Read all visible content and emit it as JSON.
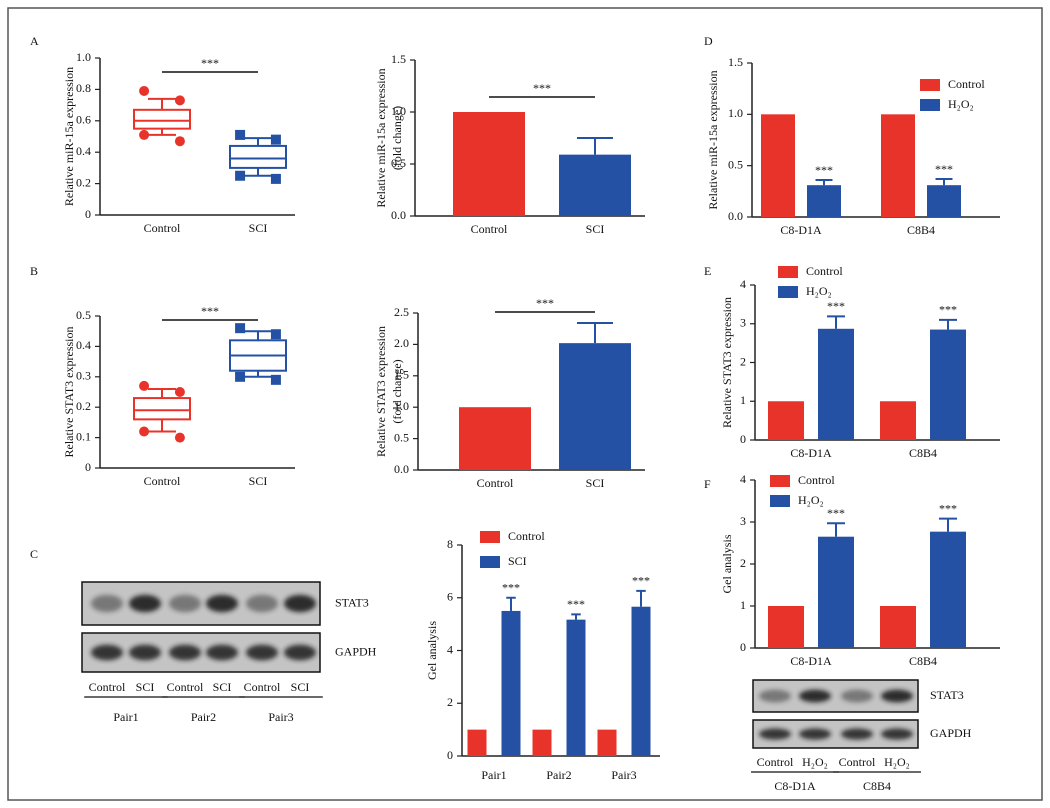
{
  "panels": [
    "A",
    "B",
    "C",
    "D",
    "E",
    "F"
  ],
  "chart_data": [
    {
      "type": "box",
      "ylabel": [
        "Relative miR-15a expression"
      ],
      "categories": [
        "Control",
        "SCI"
      ],
      "colors": [
        "#e8332a",
        "#2451a4"
      ],
      "markers": [
        "circle",
        "square"
      ],
      "boxes": [
        {
          "min": 0.51,
          "q1": 0.55,
          "median": 0.6,
          "q3": 0.67,
          "max": 0.74,
          "points": [
            0.79,
            0.73,
            0.51,
            0.47
          ]
        },
        {
          "min": 0.25,
          "q1": 0.3,
          "median": 0.36,
          "q3": 0.44,
          "max": 0.49,
          "points": [
            0.51,
            0.48,
            0.25,
            0.23
          ]
        }
      ],
      "ylim": [
        0,
        1
      ],
      "yticks": [
        0,
        0.2,
        0.4,
        0.6,
        0.8,
        {
          "value": 1,
          "label": "1.0"
        }
      ],
      "significance": "***"
    },
    {
      "type": "bar",
      "ylabel": [
        "Relative miR-15a expression",
        "(fold change)"
      ],
      "categories": [
        "Control",
        "SCI"
      ],
      "colors": [
        "#e8332a",
        "#2451a4"
      ],
      "values": [
        1,
        0.59
      ],
      "errors": [
        null,
        0.16
      ],
      "ylim": [
        0,
        1.5
      ],
      "yticks": [
        {
          "value": 0,
          "label": "0.0"
        },
        0.5,
        {
          "value": 1,
          "label": "1.0"
        },
        1.5
      ],
      "significance": "***"
    },
    {
      "type": "bar",
      "ylabel": [
        "Relative miR-15a expression"
      ],
      "categories": [
        "C8-D1A",
        "C8B4"
      ],
      "legend": "upper right",
      "series": [
        {
          "name": "Control",
          "color": "#e8332a",
          "values": [
            1,
            1
          ]
        },
        {
          "name": "H₂O₂",
          "color": "#2451a4",
          "values": [
            0.31,
            0.31
          ],
          "errors": [
            0.05,
            0.06
          ],
          "significance": [
            "***",
            "***"
          ]
        }
      ],
      "ylim": [
        0,
        1.5
      ],
      "yticks": [
        {
          "value": 0,
          "label": "0.0"
        },
        0.5,
        {
          "value": 1,
          "label": "1.0"
        },
        1.5
      ]
    },
    {
      "type": "box",
      "ylabel": [
        "Relative STAT3 expression"
      ],
      "categories": [
        "Control",
        "SCI"
      ],
      "colors": [
        "#e8332a",
        "#2451a4"
      ],
      "markers": [
        "circle",
        "square"
      ],
      "boxes": [
        {
          "min": 0.12,
          "q1": 0.16,
          "median": 0.19,
          "q3": 0.23,
          "max": 0.26,
          "points": [
            0.27,
            0.25,
            0.12,
            0.1
          ]
        },
        {
          "min": 0.3,
          "q1": 0.32,
          "median": 0.37,
          "q3": 0.42,
          "max": 0.45,
          "points": [
            0.46,
            0.44,
            0.3,
            0.29
          ]
        }
      ],
      "ylim": [
        0,
        0.5
      ],
      "yticks": [
        0,
        0.1,
        0.2,
        0.3,
        0.4,
        0.5
      ],
      "significance": "***"
    },
    {
      "type": "bar",
      "ylabel": [
        "Relative STAT3 expression",
        "(fold change)"
      ],
      "categories": [
        "Control",
        "SCI"
      ],
      "colors": [
        "#e8332a",
        "#2451a4"
      ],
      "values": [
        1,
        2.02
      ],
      "errors": [
        null,
        0.32
      ],
      "ylim": [
        0,
        2.5
      ],
      "yticks": [
        {
          "value": 0,
          "label": "0.0"
        },
        0.5,
        {
          "value": 1,
          "label": "1.0"
        },
        1.5,
        {
          "value": 2,
          "label": "2.0"
        },
        2.5
      ],
      "significance": "***"
    },
    {
      "type": "bar",
      "ylabel": [
        "Relative STAT3 expression"
      ],
      "categories": [
        "C8-D1A",
        "C8B4"
      ],
      "legend": "upper left",
      "series": [
        {
          "name": "Control",
          "color": "#e8332a",
          "values": [
            1,
            1
          ]
        },
        {
          "name": "H₂O₂",
          "color": "#2451a4",
          "values": [
            2.87,
            2.85
          ],
          "errors": [
            0.32,
            0.25
          ],
          "significance": [
            "***",
            "***"
          ]
        }
      ],
      "ylim": [
        0,
        4
      ],
      "yticks": [
        0,
        1,
        2,
        3,
        4
      ]
    },
    {
      "type": "bar",
      "ylabel": [
        "Gel analysis"
      ],
      "categories": [
        "C8-D1A",
        "C8B4"
      ],
      "legend": "upper left",
      "series": [
        {
          "name": "Control",
          "color": "#e8332a",
          "values": [
            1,
            1
          ]
        },
        {
          "name": "H₂O₂",
          "color": "#2451a4",
          "values": [
            2.65,
            2.77
          ],
          "errors": [
            0.32,
            0.31
          ],
          "significance": [
            "***",
            "***"
          ]
        }
      ],
      "ylim": [
        0,
        4
      ],
      "yticks": [
        0,
        1,
        2,
        3,
        4
      ]
    },
    {
      "type": "bar",
      "ylabel": [
        "Gel analysis"
      ],
      "categories": [
        "Pair1",
        "Pair2",
        "Pair3"
      ],
      "legend": "upper left",
      "series": [
        {
          "name": "Control",
          "color": "#e8332a",
          "values": [
            1,
            1,
            1
          ]
        },
        {
          "name": "SCI",
          "color": "#2451a4",
          "values": [
            5.5,
            5.17,
            5.66
          ],
          "errors": [
            0.5,
            0.2,
            0.6
          ],
          "significance": [
            "***",
            "***",
            "***"
          ]
        }
      ],
      "ylim": [
        0,
        8
      ],
      "yticks": [
        0,
        2,
        4,
        6,
        8
      ]
    }
  ],
  "blots": [
    {
      "rows": [
        "STAT3",
        "GAPDH"
      ],
      "lanes": [
        "Control",
        "SCI",
        "Control",
        "SCI",
        "Control",
        "SCI"
      ],
      "groups": [
        "Pair1",
        "Pair2",
        "Pair3"
      ]
    },
    {
      "rows": [
        "STAT3",
        "GAPDH"
      ],
      "lanes": [
        "Control",
        "H₂O₂",
        "Control",
        "H₂O₂"
      ],
      "groups": [
        "C8-D1A",
        "C8B4"
      ]
    }
  ]
}
